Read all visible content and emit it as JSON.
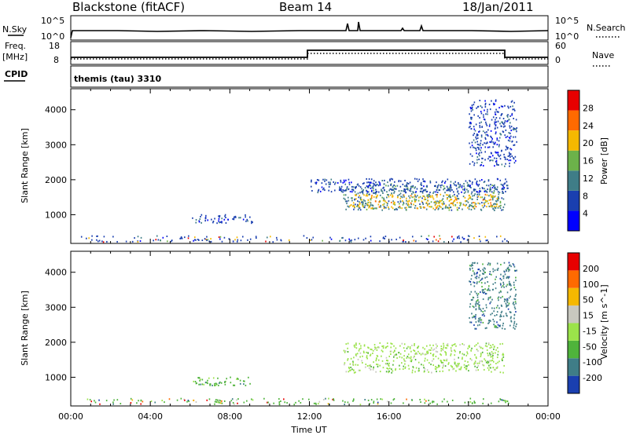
{
  "header": {
    "station": "Blackstone (fitACF)",
    "beam": "Beam 14",
    "date": "18/Jan/2011"
  },
  "aux_panels": {
    "nsky_label": "N.Sky",
    "nsearch_label": "N.Search",
    "freq_label_1": "Freq.",
    "freq_label_2": "[MHz]",
    "nave_label": "Nave",
    "cpid_label": "CPID",
    "nsky_ticks": [
      "10^5",
      "10^0"
    ],
    "nsearch_ticks": [
      "10^5",
      "10^0"
    ],
    "freq_ticks": [
      "18",
      "8"
    ],
    "nave_ticks": [
      "60",
      "0"
    ],
    "cpid_text": "themis (tau) 3310"
  },
  "chart_data": [
    {
      "type": "heatmap",
      "title": "",
      "ylabel": "Slant Range [km]",
      "colorbar_label": "Power [dB]",
      "colorbar_ticks": [
        "28",
        "24",
        "20",
        "16",
        "12",
        "8",
        "4"
      ],
      "colorbar_colors": [
        "#0000ff",
        "#1a3fb0",
        "#3f7d87",
        "#6cb24a",
        "#f5b800",
        "#ff6a00",
        "#e80000"
      ],
      "yticks": [
        "4000",
        "3000",
        "2000",
        "1000"
      ],
      "ylim": [
        180,
        4600
      ],
      "xlim": [
        0,
        24
      ],
      "series": [
        {
          "x_range": [
            6.0,
            9.2
          ],
          "y_range": [
            780,
            1020
          ],
          "level": "8"
        },
        {
          "x_range": [
            13.7,
            21.8
          ],
          "y_range": [
            1150,
            1900
          ],
          "level": "12"
        },
        {
          "x_range": [
            14.0,
            21.5
          ],
          "y_range": [
            1200,
            1600
          ],
          "level": "20"
        },
        {
          "x_range": [
            12.0,
            22.0
          ],
          "y_range": [
            1650,
            2050
          ],
          "level": "8"
        },
        {
          "x_range": [
            20.0,
            22.4
          ],
          "y_range": [
            2400,
            4300
          ],
          "level": "8"
        }
      ]
    },
    {
      "type": "heatmap",
      "title": "",
      "ylabel": "Slant Range [km]",
      "xlabel": "Time UT",
      "colorbar_label": "Velocity [m s^-1]",
      "colorbar_ticks": [
        "200",
        "100",
        "50",
        "15",
        "-15",
        "-50",
        "-100",
        "-200"
      ],
      "colorbar_colors": [
        "#1a3fb0",
        "#3f7d87",
        "#4fb33b",
        "#9be34a",
        "#c8c8bf",
        "#f5b800",
        "#ff6a00",
        "#e80000"
      ],
      "xticks": [
        "00:00",
        "04:00",
        "08:00",
        "12:00",
        "16:00",
        "20:00",
        "00:00"
      ],
      "yticks": [
        "4000",
        "3000",
        "2000",
        "1000"
      ],
      "ylim": [
        180,
        4600
      ],
      "xlim": [
        0,
        24
      ],
      "series": [
        {
          "x_range": [
            6.0,
            9.2
          ],
          "y_range": [
            780,
            1020
          ],
          "level": "-50"
        },
        {
          "x_range": [
            13.7,
            21.8
          ],
          "y_range": [
            1150,
            2000
          ],
          "level": "-15"
        },
        {
          "x_range": [
            20.0,
            22.4
          ],
          "y_range": [
            2400,
            4300
          ],
          "level": "-100"
        }
      ]
    }
  ]
}
